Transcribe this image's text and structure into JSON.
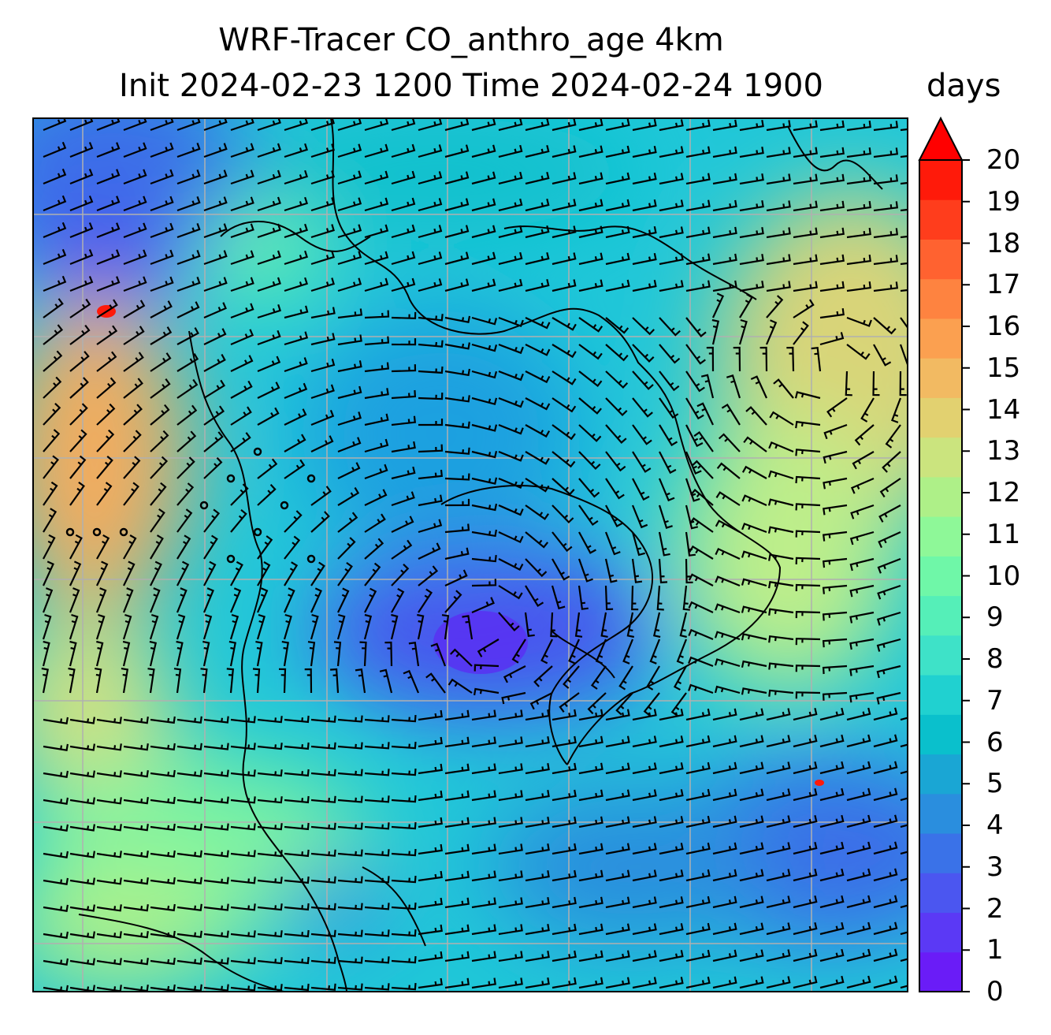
{
  "title_line1": "WRF-Tracer CO_anthro_age 4km",
  "title_line2": "Init 2024-02-23 1200 Time 2024-02-24 1900",
  "colorbar": {
    "units": "days",
    "min": 0,
    "max": 20,
    "extend": "max",
    "ticks": [
      0,
      1,
      2,
      3,
      4,
      5,
      6,
      7,
      8,
      9,
      10,
      11,
      12,
      13,
      14,
      15,
      16,
      17,
      18,
      19,
      20
    ],
    "tick_labels": [
      "0",
      "1",
      "2",
      "3",
      "4",
      "5",
      "6",
      "7",
      "8",
      "9",
      "10",
      "11",
      "12",
      "13",
      "14",
      "15",
      "16",
      "17",
      "18",
      "19",
      "20"
    ],
    "colormap": "rainbow",
    "colors": [
      "#6a1cf7",
      "#5b39f5",
      "#4b56f0",
      "#3a72e8",
      "#2a8ede",
      "#1aa6d4",
      "#0ac0cc",
      "#20d1d0",
      "#3ee2c8",
      "#55efb8",
      "#6ff7a8",
      "#8ef898",
      "#aef088",
      "#cbe47e",
      "#e2d170",
      "#f2ba62",
      "#fba050",
      "#fe8340",
      "#ff6230",
      "#ff3d1c",
      "#ff1a0a"
    ],
    "extend_color": "#ff0000"
  },
  "map": {
    "field": "CO_anthro_age",
    "overlay": "wind barbs",
    "gridlines": true,
    "coastlines": true
  }
}
